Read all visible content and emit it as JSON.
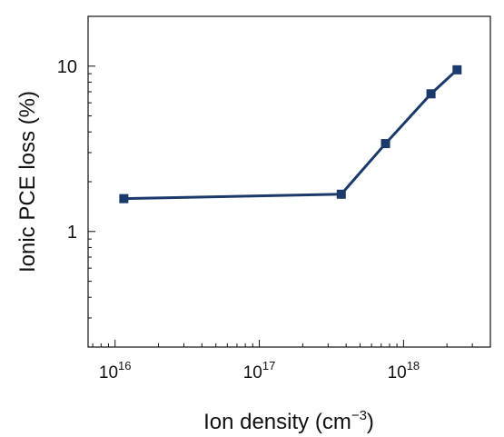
{
  "chart_data": {
    "type": "line",
    "xlabel_main": "Ion density (cm",
    "xlabel_sup": "−3",
    "xlabel_close": ")",
    "ylabel": "Ionic PCE loss (%)",
    "x_scale": "log",
    "y_scale": "log",
    "xlim": [
      6500000000000000.0,
      4e+18
    ],
    "ylim": [
      0.2,
      20
    ],
    "x_ticks": [
      {
        "value": 1e+16,
        "base": "10",
        "exp": "16"
      },
      {
        "value": 1e+17,
        "base": "10",
        "exp": "17"
      },
      {
        "value": 1e+18,
        "base": "10",
        "exp": "18"
      }
    ],
    "y_ticks": [
      {
        "value": 1,
        "label": "1"
      },
      {
        "value": 10,
        "label": "10"
      }
    ],
    "grid": false,
    "colors": {
      "series": "#1b3a6b",
      "axis": "#111111"
    },
    "series": [
      {
        "x": [
          1.15e+16,
          3.7e+17,
          7.5e+17,
          1.55e+18,
          2.35e+18
        ],
        "y": [
          1.58,
          1.68,
          3.4,
          6.8,
          9.5
        ]
      }
    ]
  }
}
